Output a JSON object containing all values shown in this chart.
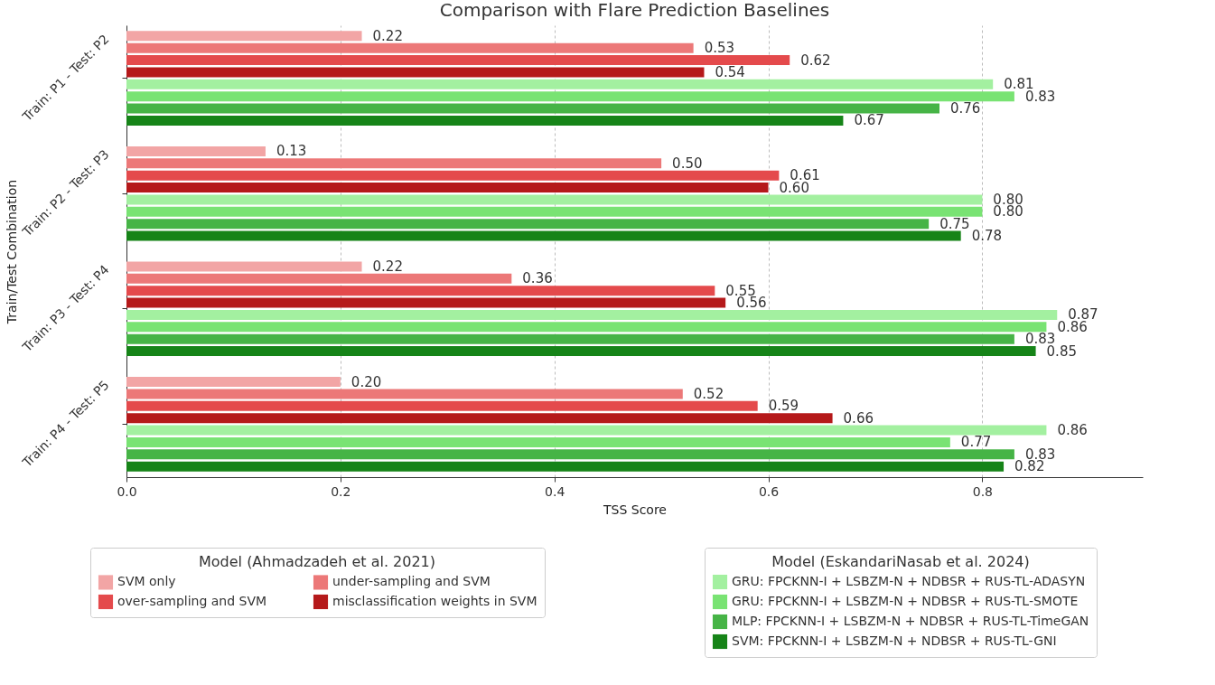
{
  "chart_data": {
    "type": "bar",
    "orientation": "horizontal",
    "title": "Comparison with Flare Prediction Baselines",
    "xlabel": "TSS Score",
    "ylabel": "Train/Test Combination",
    "legend_title": [
      "Model (Ahmadzadeh et al. 2021)",
      "Model (EskandariNasab et al. 2024)"
    ],
    "legend": "bottom",
    "grid": "x",
    "categories": [
      "Train: P1 - Test: P2",
      "Train: P2 - Test: P3",
      "Train: P3 - Test: P4",
      "Train: P4 - Test: P5"
    ],
    "xlim": [
      0,
      0.95
    ],
    "xticks": [
      {
        "value": 0,
        "label": "0.0"
      },
      {
        "value": 0.2,
        "label": "0.2"
      },
      {
        "value": 0.4,
        "label": "0.4"
      },
      {
        "value": 0.6,
        "label": "0.6"
      },
      {
        "value": 0.8,
        "label": "0.8"
      }
    ],
    "series": [
      {
        "name": "SVM only",
        "color": "#f2a5a5",
        "values": [
          0.22,
          0.13,
          0.22,
          0.2
        ],
        "value_labels": [
          "0.22",
          "0.13",
          "0.22",
          "0.20"
        ]
      },
      {
        "name": "under-sampling and SVM",
        "color": "#ec7878",
        "values": [
          0.53,
          0.5,
          0.36,
          0.52
        ],
        "value_labels": [
          "0.53",
          "0.50",
          "0.36",
          "0.52"
        ]
      },
      {
        "name": "over-sampling and SVM",
        "color": "#e44a4c",
        "values": [
          0.62,
          0.61,
          0.55,
          0.59
        ],
        "value_labels": [
          "0.62",
          "0.61",
          "0.55",
          "0.59"
        ]
      },
      {
        "name": "misclassification weights in SVM",
        "color": "#b5191a",
        "values": [
          0.54,
          0.6,
          0.56,
          0.66
        ],
        "value_labels": [
          "0.54",
          "0.60",
          "0.56",
          "0.66"
        ]
      },
      {
        "name": "GRU: FPCKNN-I + LSBZM-N + NDBSR + RUS-TL-ADASYN",
        "color": "#a3f0a0",
        "values": [
          0.81,
          0.8,
          0.87,
          0.86
        ],
        "value_labels": [
          "0.81",
          "0.80",
          "0.87",
          "0.86"
        ]
      },
      {
        "name": "GRU: FPCKNN-I + LSBZM-N + NDBSR + RUS-TL-SMOTE",
        "color": "#79e373",
        "values": [
          0.83,
          0.8,
          0.86,
          0.77
        ],
        "value_labels": [
          "0.83",
          "0.80",
          "0.86",
          "0.77"
        ]
      },
      {
        "name": "MLP: FPCKNN-I + LSBZM-N + NDBSR + RUS-TL-TimeGAN",
        "color": "#46b446",
        "values": [
          0.76,
          0.75,
          0.83,
          0.83
        ],
        "value_labels": [
          "0.76",
          "0.75",
          "0.83",
          "0.83"
        ]
      },
      {
        "name": "SVM: FPCKNN-I + LSBZM-N + NDBSR + RUS-TL-GNI",
        "color": "#168418",
        "values": [
          0.67,
          0.78,
          0.85,
          0.82
        ],
        "value_labels": [
          "0.67",
          "0.78",
          "0.85",
          "0.82"
        ]
      }
    ]
  }
}
